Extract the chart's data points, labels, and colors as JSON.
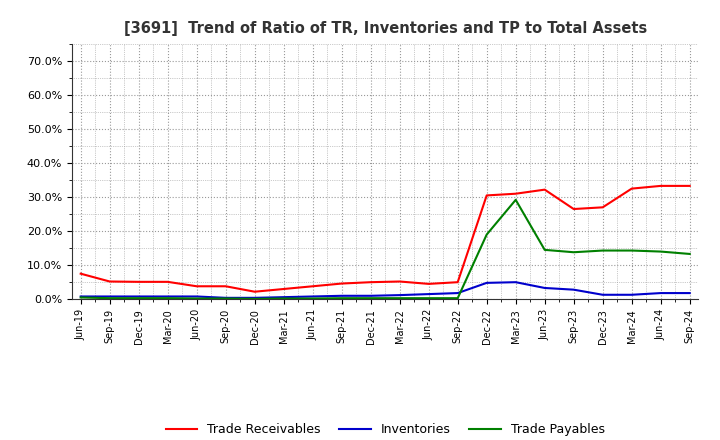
{
  "title": "[3691]  Trend of Ratio of TR, Inventories and TP to Total Assets",
  "x_labels": [
    "Jun-19",
    "Sep-19",
    "Dec-19",
    "Mar-20",
    "Jun-20",
    "Sep-20",
    "Dec-20",
    "Mar-21",
    "Jun-21",
    "Sep-21",
    "Dec-21",
    "Mar-22",
    "Jun-22",
    "Sep-22",
    "Dec-22",
    "Mar-23",
    "Jun-23",
    "Sep-23",
    "Dec-23",
    "Mar-24",
    "Jun-24",
    "Sep-24"
  ],
  "trade_receivables": [
    0.075,
    0.052,
    0.051,
    0.051,
    0.038,
    0.038,
    0.022,
    0.03,
    0.038,
    0.046,
    0.05,
    0.052,
    0.045,
    0.05,
    0.305,
    0.31,
    0.322,
    0.265,
    0.27,
    0.325,
    0.333,
    0.333
  ],
  "inventories": [
    0.008,
    0.008,
    0.008,
    0.008,
    0.008,
    0.004,
    0.004,
    0.006,
    0.008,
    0.01,
    0.01,
    0.012,
    0.015,
    0.018,
    0.048,
    0.05,
    0.033,
    0.028,
    0.013,
    0.013,
    0.018,
    0.018
  ],
  "trade_payables": [
    0.005,
    0.003,
    0.003,
    0.003,
    0.002,
    0.002,
    0.001,
    0.002,
    0.002,
    0.003,
    0.003,
    0.003,
    0.003,
    0.003,
    0.19,
    0.292,
    0.145,
    0.138,
    0.143,
    0.143,
    0.14,
    0.133
  ],
  "tr_color": "#ff0000",
  "inv_color": "#0000cc",
  "tp_color": "#008000",
  "background_color": "#ffffff",
  "grid_color": "#999999",
  "ylim": [
    0.0,
    0.75
  ],
  "yticks": [
    0.0,
    0.1,
    0.2,
    0.3,
    0.4,
    0.5,
    0.6,
    0.7
  ],
  "ytick_labels": [
    "0.0%",
    "10.0%",
    "20.0%",
    "30.0%",
    "40.0%",
    "50.0%",
    "60.0%",
    "70.0%"
  ]
}
